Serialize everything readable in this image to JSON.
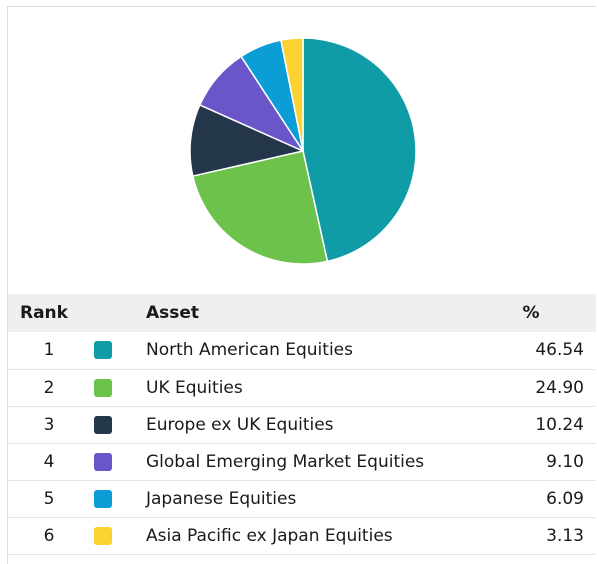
{
  "table": {
    "headers": {
      "rank": "Rank",
      "asset": "Asset",
      "percent": "%"
    },
    "rows": [
      {
        "rank": "1",
        "asset": "North American Equities",
        "percent": "46.54",
        "color": "#0f9ca6"
      },
      {
        "rank": "2",
        "asset": "UK Equities",
        "percent": "24.90",
        "color": "#6cc24a"
      },
      {
        "rank": "3",
        "asset": "Europe ex UK Equities",
        "percent": "10.24",
        "color": "#24374a"
      },
      {
        "rank": "4",
        "asset": "Global Emerging Market Equities",
        "percent": "9.10",
        "color": "#6a55c9"
      },
      {
        "rank": "5",
        "asset": "Japanese Equities",
        "percent": "6.09",
        "color": "#0b9dd6"
      },
      {
        "rank": "6",
        "asset": "Asia Pacific ex Japan Equities",
        "percent": "3.13",
        "color": "#fcd232"
      }
    ]
  },
  "chart_data": {
    "type": "pie",
    "categories": [
      "North American Equities",
      "UK Equities",
      "Europe ex UK Equities",
      "Global Emerging Market Equities",
      "Japanese Equities",
      "Asia Pacific ex Japan Equities"
    ],
    "values": [
      46.54,
      24.9,
      10.24,
      9.1,
      6.09,
      3.13
    ],
    "colors": [
      "#0f9ca6",
      "#6cc24a",
      "#24374a",
      "#6a55c9",
      "#0b9dd6",
      "#fcd232"
    ],
    "start_angle": "12 o'clock",
    "direction": "clockwise"
  }
}
